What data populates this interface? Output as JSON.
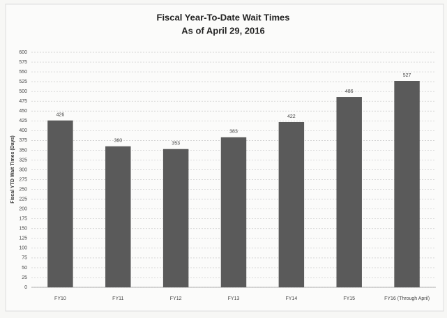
{
  "chart_data": {
    "type": "bar",
    "title": "Fiscal Year-To-Date Wait Times",
    "subtitle": "As of April 29, 2016",
    "y_label": "Fiscal YTD Wait Times (Days)",
    "categories": [
      "FY10",
      "FY11",
      "FY12",
      "FY13",
      "FY14",
      "FY15",
      "FY16 (Through April)"
    ],
    "values": [
      426,
      360,
      353,
      383,
      422,
      486,
      527
    ],
    "color": "#5a5a5a",
    "ylim": [
      0,
      600
    ],
    "yticks": [
      0,
      25,
      50,
      75,
      100,
      125,
      150,
      175,
      200,
      225,
      250,
      275,
      300,
      325,
      350,
      375,
      400,
      425,
      450,
      475,
      500,
      525,
      550,
      575,
      600
    ],
    "grid": true
  }
}
